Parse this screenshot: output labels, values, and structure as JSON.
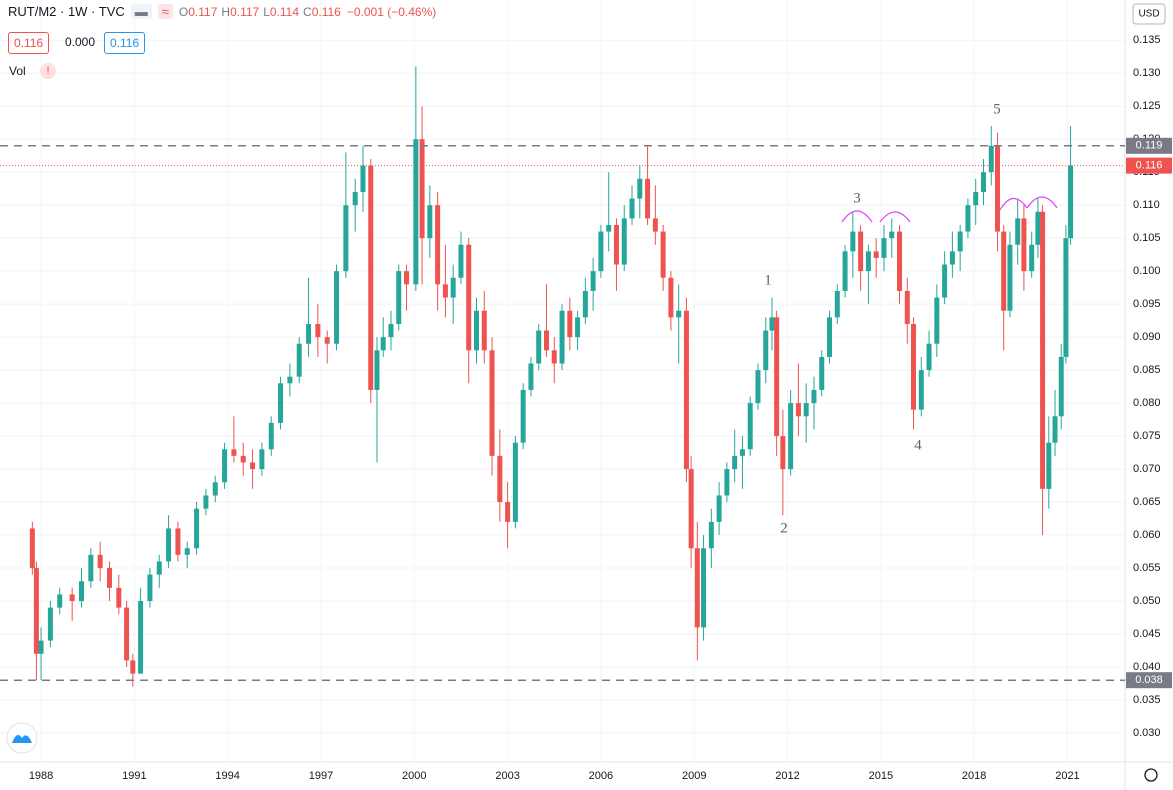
{
  "header": {
    "symbol": "RUT/M2 · 1W · TVC",
    "ohlc": [
      {
        "k": "O",
        "v": "0.117"
      },
      {
        "k": "H",
        "v": "0.117"
      },
      {
        "k": "L",
        "v": "0.114"
      },
      {
        "k": "C",
        "v": "0.116"
      }
    ],
    "change": "−0.001 (−0.46%)",
    "boxes": [
      "0.116",
      "0.000",
      "0.116"
    ],
    "vol": "Vol",
    "currency": "USD"
  },
  "chart_data": {
    "type": "candlestick",
    "title": "RUT/M2",
    "up_color": "#26a69a",
    "down_color": "#ef5350",
    "grid": true,
    "xlim": [
      1986.68,
      2022.85
    ],
    "ylim": [
      0.0256,
      0.1411
    ],
    "xticks": [
      1988,
      1991,
      1994,
      1997,
      2000,
      2003,
      2006,
      2009,
      2012,
      2015,
      2018,
      2021
    ],
    "yticks": [
      {
        "value": 0.03,
        "label": "0.030"
      },
      {
        "value": 0.035,
        "label": "0.035"
      },
      {
        "value": 0.04,
        "label": "0.040"
      },
      {
        "value": 0.045,
        "label": "0.045"
      },
      {
        "value": 0.05,
        "label": "0.050"
      },
      {
        "value": 0.055,
        "label": "0.055"
      },
      {
        "value": 0.06,
        "label": "0.060"
      },
      {
        "value": 0.065,
        "label": "0.065"
      },
      {
        "value": 0.07,
        "label": "0.070"
      },
      {
        "value": 0.075,
        "label": "0.075"
      },
      {
        "value": 0.08,
        "label": "0.080"
      },
      {
        "value": 0.085,
        "label": "0.085"
      },
      {
        "value": 0.09,
        "label": "0.090"
      },
      {
        "value": 0.095,
        "label": "0.095"
      },
      {
        "value": 0.1,
        "label": "0.100"
      },
      {
        "value": 0.105,
        "label": "0.105"
      },
      {
        "value": 0.11,
        "label": "0.110"
      },
      {
        "value": 0.115,
        "label": "0.115"
      },
      {
        "value": 0.12,
        "label": "0.120"
      },
      {
        "value": 0.125,
        "label": "0.125"
      },
      {
        "value": 0.13,
        "label": "0.130"
      },
      {
        "value": 0.135,
        "label": "0.135"
      }
    ],
    "hlines": [
      0.119,
      0.038
    ],
    "last_price": 0.116,
    "annotations": [
      "1",
      "2",
      "3",
      "4",
      "5"
    ],
    "x": [
      1987.72,
      1987.85,
      1988.0,
      1988.3,
      1988.6,
      1989.0,
      1989.3,
      1989.6,
      1989.9,
      1990.2,
      1990.5,
      1990.75,
      1990.95,
      1991.2,
      1991.5,
      1991.8,
      1992.1,
      1992.4,
      1992.7,
      1993.0,
      1993.3,
      1993.6,
      1993.9,
      1994.2,
      1994.5,
      1994.8,
      1995.1,
      1995.4,
      1995.7,
      1996.0,
      1996.3,
      1996.6,
      1996.9,
      1997.2,
      1997.5,
      1997.8,
      1998.1,
      1998.35,
      1998.6,
      1998.8,
      1999.0,
      1999.25,
      1999.5,
      1999.75,
      2000.05,
      2000.25,
      2000.5,
      2000.75,
      2001.0,
      2001.25,
      2001.5,
      2001.75,
      2002.0,
      2002.25,
      2002.5,
      2002.75,
      2003.0,
      2003.25,
      2003.5,
      2003.75,
      2004.0,
      2004.25,
      2004.5,
      2004.75,
      2005.0,
      2005.25,
      2005.5,
      2005.75,
      2006.0,
      2006.25,
      2006.5,
      2006.75,
      2007.0,
      2007.25,
      2007.5,
      2007.75,
      2008.0,
      2008.25,
      2008.5,
      2008.75,
      2008.9,
      2009.1,
      2009.3,
      2009.55,
      2009.8,
      2010.05,
      2010.3,
      2010.55,
      2010.8,
      2011.05,
      2011.3,
      2011.5,
      2011.65,
      2011.85,
      2012.1,
      2012.35,
      2012.6,
      2012.85,
      2013.1,
      2013.35,
      2013.6,
      2013.85,
      2014.1,
      2014.35,
      2014.6,
      2014.85,
      2015.1,
      2015.35,
      2015.6,
      2015.85,
      2016.05,
      2016.3,
      2016.55,
      2016.8,
      2017.05,
      2017.3,
      2017.55,
      2017.8,
      2018.05,
      2018.3,
      2018.55,
      2018.75,
      2018.95,
      2019.15,
      2019.4,
      2019.6,
      2019.85,
      2020.05,
      2020.2,
      2020.4,
      2020.6,
      2020.8,
      2020.95,
      2021.1
    ],
    "open": [
      0.061,
      0.055,
      0.042,
      0.044,
      0.049,
      0.051,
      0.05,
      0.053,
      0.057,
      0.055,
      0.052,
      0.049,
      0.041,
      0.039,
      0.05,
      0.054,
      0.056,
      0.061,
      0.057,
      0.058,
      0.064,
      0.066,
      0.068,
      0.073,
      0.072,
      0.071,
      0.07,
      0.073,
      0.077,
      0.083,
      0.084,
      0.089,
      0.092,
      0.09,
      0.089,
      0.1,
      0.11,
      0.112,
      0.116,
      0.082,
      0.088,
      0.09,
      0.092,
      0.1,
      0.098,
      0.12,
      0.105,
      0.11,
      0.098,
      0.096,
      0.099,
      0.104,
      0.088,
      0.094,
      0.088,
      0.072,
      0.065,
      0.062,
      0.074,
      0.082,
      0.086,
      0.091,
      0.088,
      0.086,
      0.094,
      0.09,
      0.093,
      0.097,
      0.1,
      0.106,
      0.107,
      0.101,
      0.108,
      0.111,
      0.114,
      0.108,
      0.106,
      0.099,
      0.093,
      0.094,
      0.07,
      0.058,
      0.046,
      0.058,
      0.062,
      0.066,
      0.07,
      0.072,
      0.073,
      0.08,
      0.085,
      0.091,
      0.093,
      0.075,
      0.07,
      0.08,
      0.078,
      0.08,
      0.082,
      0.087,
      0.093,
      0.097,
      0.103,
      0.106,
      0.1,
      0.103,
      0.102,
      0.105,
      0.106,
      0.097,
      0.092,
      0.079,
      0.085,
      0.089,
      0.096,
      0.101,
      0.103,
      0.106,
      0.11,
      0.112,
      0.115,
      0.119,
      0.106,
      0.094,
      0.104,
      0.108,
      0.1,
      0.104,
      0.109,
      0.067,
      0.074,
      0.078,
      0.087,
      0.105
    ],
    "high": [
      0.062,
      0.056,
      0.046,
      0.05,
      0.052,
      0.052,
      0.055,
      0.058,
      0.059,
      0.056,
      0.054,
      0.05,
      0.042,
      0.052,
      0.055,
      0.057,
      0.063,
      0.062,
      0.059,
      0.065,
      0.067,
      0.069,
      0.074,
      0.078,
      0.074,
      0.073,
      0.074,
      0.078,
      0.084,
      0.086,
      0.09,
      0.099,
      0.095,
      0.091,
      0.101,
      0.118,
      0.114,
      0.119,
      0.117,
      0.09,
      0.093,
      0.094,
      0.101,
      0.101,
      0.131,
      0.125,
      0.113,
      0.112,
      0.104,
      0.101,
      0.106,
      0.105,
      0.096,
      0.097,
      0.09,
      0.076,
      0.068,
      0.075,
      0.083,
      0.087,
      0.092,
      0.098,
      0.09,
      0.095,
      0.096,
      0.094,
      0.099,
      0.102,
      0.107,
      0.115,
      0.108,
      0.11,
      0.113,
      0.116,
      0.119,
      0.113,
      0.107,
      0.1,
      0.098,
      0.096,
      0.072,
      0.062,
      0.06,
      0.064,
      0.068,
      0.071,
      0.076,
      0.075,
      0.081,
      0.086,
      0.093,
      0.096,
      0.094,
      0.079,
      0.082,
      0.086,
      0.083,
      0.084,
      0.088,
      0.094,
      0.098,
      0.104,
      0.109,
      0.107,
      0.104,
      0.105,
      0.107,
      0.108,
      0.107,
      0.099,
      0.093,
      0.087,
      0.091,
      0.098,
      0.103,
      0.106,
      0.107,
      0.111,
      0.114,
      0.117,
      0.122,
      0.121,
      0.107,
      0.106,
      0.111,
      0.11,
      0.106,
      0.111,
      0.11,
      0.078,
      0.082,
      0.089,
      0.107,
      0.122
    ],
    "low": [
      0.054,
      0.038,
      0.038,
      0.043,
      0.048,
      0.047,
      0.049,
      0.052,
      0.053,
      0.05,
      0.048,
      0.04,
      0.037,
      0.039,
      0.049,
      0.052,
      0.055,
      0.056,
      0.055,
      0.057,
      0.063,
      0.065,
      0.067,
      0.071,
      0.069,
      0.067,
      0.069,
      0.072,
      0.076,
      0.081,
      0.083,
      0.087,
      0.087,
      0.086,
      0.088,
      0.099,
      0.106,
      0.109,
      0.08,
      0.071,
      0.087,
      0.088,
      0.091,
      0.094,
      0.097,
      0.098,
      0.102,
      0.094,
      0.093,
      0.092,
      0.098,
      0.083,
      0.086,
      0.086,
      0.069,
      0.062,
      0.058,
      0.061,
      0.073,
      0.081,
      0.085,
      0.087,
      0.083,
      0.085,
      0.088,
      0.088,
      0.092,
      0.094,
      0.099,
      0.103,
      0.097,
      0.1,
      0.107,
      0.108,
      0.107,
      0.104,
      0.097,
      0.091,
      0.086,
      0.068,
      0.055,
      0.041,
      0.044,
      0.055,
      0.06,
      0.065,
      0.068,
      0.067,
      0.072,
      0.079,
      0.083,
      0.088,
      0.072,
      0.063,
      0.069,
      0.075,
      0.074,
      0.076,
      0.081,
      0.086,
      0.092,
      0.096,
      0.099,
      0.097,
      0.095,
      0.099,
      0.1,
      0.102,
      0.095,
      0.089,
      0.076,
      0.078,
      0.084,
      0.087,
      0.095,
      0.099,
      0.1,
      0.105,
      0.107,
      0.11,
      0.113,
      0.103,
      0.088,
      0.093,
      0.101,
      0.097,
      0.099,
      0.102,
      0.06,
      0.064,
      0.072,
      0.076,
      0.086,
      0.104
    ],
    "close": [
      0.055,
      0.042,
      0.044,
      0.049,
      0.051,
      0.05,
      0.053,
      0.057,
      0.055,
      0.052,
      0.049,
      0.041,
      0.039,
      0.05,
      0.054,
      0.056,
      0.061,
      0.057,
      0.058,
      0.064,
      0.066,
      0.068,
      0.073,
      0.072,
      0.071,
      0.07,
      0.073,
      0.077,
      0.083,
      0.084,
      0.089,
      0.092,
      0.09,
      0.089,
      0.1,
      0.11,
      0.112,
      0.116,
      0.082,
      0.088,
      0.09,
      0.092,
      0.1,
      0.098,
      0.12,
      0.105,
      0.11,
      0.098,
      0.096,
      0.099,
      0.104,
      0.088,
      0.094,
      0.088,
      0.072,
      0.065,
      0.062,
      0.074,
      0.082,
      0.086,
      0.091,
      0.088,
      0.086,
      0.094,
      0.09,
      0.093,
      0.097,
      0.1,
      0.106,
      0.107,
      0.101,
      0.108,
      0.111,
      0.114,
      0.108,
      0.106,
      0.099,
      0.093,
      0.094,
      0.07,
      0.058,
      0.046,
      0.058,
      0.062,
      0.066,
      0.07,
      0.072,
      0.073,
      0.08,
      0.085,
      0.091,
      0.093,
      0.075,
      0.07,
      0.08,
      0.078,
      0.08,
      0.082,
      0.087,
      0.093,
      0.097,
      0.103,
      0.106,
      0.1,
      0.103,
      0.102,
      0.105,
      0.106,
      0.097,
      0.092,
      0.079,
      0.085,
      0.089,
      0.096,
      0.101,
      0.103,
      0.106,
      0.11,
      0.112,
      0.115,
      0.119,
      0.106,
      0.094,
      0.104,
      0.108,
      0.1,
      0.104,
      0.109,
      0.067,
      0.074,
      0.078,
      0.087,
      0.105,
      0.116
    ]
  }
}
